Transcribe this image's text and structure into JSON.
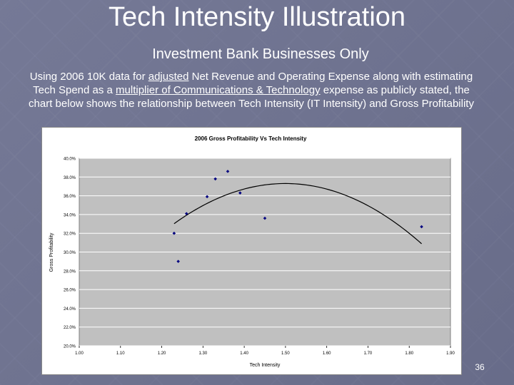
{
  "slide": {
    "title": "Tech Intensity Illustration",
    "subtitle": "Investment Bank Businesses Only",
    "description_parts": [
      "Using 2006 10K data for ",
      "adjusted",
      " Net Revenue and Operating Expense along with  estimating Tech Spend as a ",
      "multiplier of Communications & Technology",
      " expense as publicly stated, the chart below shows the relationship between Tech Intensity (IT Intensity) and Gross Profitability"
    ],
    "page_number": "36"
  },
  "chart_data": {
    "type": "scatter",
    "title": "2006 Gross Profitability Vs Tech Intensity",
    "xlabel": "Tech Intensity",
    "ylabel": "Gross Profitability",
    "xlim": [
      1.0,
      1.9
    ],
    "ylim": [
      0.2,
      0.4
    ],
    "x_ticks": [
      "1.00",
      "1.10",
      "1.20",
      "1.30",
      "1.40",
      "1.50",
      "1.60",
      "1.70",
      "1.80",
      "1.90"
    ],
    "y_ticks": [
      "20.0%",
      "22.0%",
      "24.0%",
      "26.0%",
      "28.0%",
      "30.0%",
      "32.0%",
      "34.0%",
      "36.0%",
      "38.0%",
      "40.0%"
    ],
    "points": [
      {
        "x": 1.23,
        "y": 0.32
      },
      {
        "x": 1.24,
        "y": 0.29
      },
      {
        "x": 1.26,
        "y": 0.341
      },
      {
        "x": 1.31,
        "y": 0.359
      },
      {
        "x": 1.33,
        "y": 0.378
      },
      {
        "x": 1.36,
        "y": 0.386
      },
      {
        "x": 1.39,
        "y": 0.363
      },
      {
        "x": 1.45,
        "y": 0.336
      },
      {
        "x": 1.83,
        "y": 0.327
      }
    ],
    "trendline": {
      "type": "polynomial-2",
      "x_range": [
        1.23,
        1.83
      ],
      "a": -0.5889,
      "b": 1.7664,
      "c": -0.9515
    },
    "grid": true,
    "legend": "none",
    "colors": {
      "points": "#000080",
      "plot_area": "#c0c0c0",
      "gridlines": "#ffffff",
      "trendline": "#000000"
    }
  }
}
